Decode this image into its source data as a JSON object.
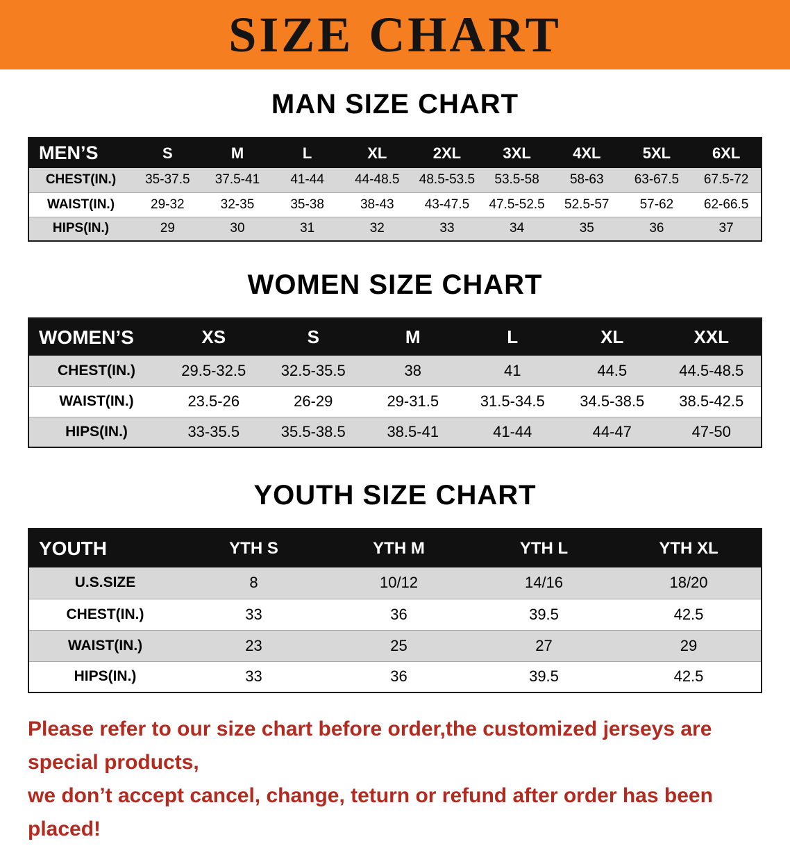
{
  "banner": {
    "title": "SIZE CHART"
  },
  "sections": [
    {
      "heading": "MAN SIZE CHART",
      "table": {
        "header": [
          "MEN’S",
          "S",
          "M",
          "L",
          "XL",
          "2XL",
          "3XL",
          "4XL",
          "5XL",
          "6XL"
        ],
        "rows": [
          [
            "CHEST(IN.)",
            "35-37.5",
            "37.5-41",
            "41-44",
            "44-48.5",
            "48.5-53.5",
            "53.5-58",
            "58-63",
            "63-67.5",
            "67.5-72"
          ],
          [
            "WAIST(IN.)",
            "29-32",
            "32-35",
            "35-38",
            "38-43",
            "43-47.5",
            "47.5-52.5",
            "52.5-57",
            "57-62",
            "62-66.5"
          ],
          [
            "HIPS(IN.)",
            "29",
            "30",
            "31",
            "32",
            "33",
            "34",
            "35",
            "36",
            "37"
          ]
        ]
      }
    },
    {
      "heading": "WOMEN SIZE CHART",
      "table": {
        "header": [
          "WOMEN’S",
          "XS",
          "S",
          "M",
          "L",
          "XL",
          "XXL"
        ],
        "rows": [
          [
            "CHEST(IN.)",
            "29.5-32.5",
            "32.5-35.5",
            "38",
            "41",
            "44.5",
            "44.5-48.5"
          ],
          [
            "WAIST(IN.)",
            "23.5-26",
            "26-29",
            "29-31.5",
            "31.5-34.5",
            "34.5-38.5",
            "38.5-42.5"
          ],
          [
            "HIPS(IN.)",
            "33-35.5",
            "35.5-38.5",
            "38.5-41",
            "41-44",
            "44-47",
            "47-50"
          ]
        ]
      }
    },
    {
      "heading": "YOUTH SIZE CHART",
      "table": {
        "header": [
          "YOUTH",
          "YTH S",
          "YTH M",
          "YTH L",
          "YTH XL"
        ],
        "rows": [
          [
            "U.S.SIZE",
            "8",
            "10/12",
            "14/16",
            "18/20"
          ],
          [
            "CHEST(IN.)",
            "33",
            "36",
            "39.5",
            "42.5"
          ],
          [
            "WAIST(IN.)",
            "23",
            "25",
            "27",
            "29"
          ],
          [
            "HIPS(IN.)",
            "33",
            "36",
            "39.5",
            "42.5"
          ]
        ]
      }
    }
  ],
  "footer": {
    "line1": "Please refer to our size chart before order,the customized jerseys are special products,",
    "line2": "we don’t accept cancel, change, teturn or refund after order has been placed!"
  },
  "colors": {
    "banner_bg": "#f57e20",
    "header_bg": "#111111",
    "stripe_bg": "#d8d8d8",
    "notice_text": "#b32b20"
  }
}
